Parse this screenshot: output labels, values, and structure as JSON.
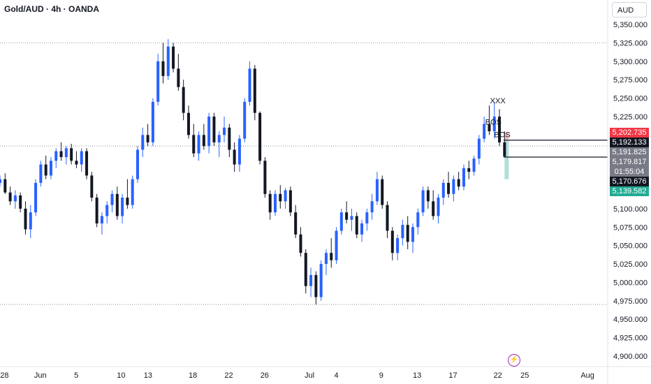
{
  "header": {
    "symbol_title": "Gold/AUD · 4h · OANDA"
  },
  "currency_button": "AUD",
  "colors": {
    "up": "#2962ff",
    "down": "#131722",
    "grid": "#9598a1",
    "red_badge": "#f23645",
    "teal_badge": "#22ab94",
    "gray_badge": "#787b86",
    "black_badge": "#131722",
    "tp_zone": "#b2dfdb",
    "sl_zone": "#f7c5c5"
  },
  "annotations": [
    {
      "text": "XXX",
      "x": "2025-07-22T00:00",
      "y": 5243
    },
    {
      "text": "BOS",
      "x": "2025-07-21T12:00",
      "y": 5214
    },
    {
      "text": "BOS",
      "x": "2025-07-22T12:00",
      "y": 5197
    }
  ],
  "price_labels": [
    {
      "name": "red-badge",
      "text": "5,202.735",
      "value": 5202.735,
      "color": "#f23645"
    },
    {
      "name": "black-badge-top",
      "text": "5,192.133",
      "value": 5192.133,
      "color": "#131722"
    },
    {
      "name": "gray-badge-1",
      "text": "5,191.825",
      "value": 5191.825,
      "color": "#787b86"
    },
    {
      "name": "gray-badge-2",
      "text": "5,179.817",
      "value": 5179.817,
      "color": "#787b86"
    },
    {
      "name": "countdown-badge",
      "text": "01:55:04",
      "value": 5168.0,
      "color": "#787b86"
    },
    {
      "name": "black-badge-bottom",
      "text": "5,170.676",
      "value": 5170.676,
      "color": "#131722"
    },
    {
      "name": "teal-badge",
      "text": "5,139.582",
      "value": 5139.582,
      "color": "#22ab94"
    }
  ],
  "chart_data": {
    "type": "candlestick",
    "ylim": [
      4890,
      5370
    ],
    "xlim": [
      "2025-05-27T12:00",
      "2025-08-03T06:00"
    ],
    "y_ticks": [
      "5,350.000",
      "5,325.000",
      "5,300.000",
      "5,275.000",
      "5,250.000",
      "5,225.000",
      "5,200.000",
      "5,175.000",
      "5,150.000",
      "5,125.000",
      "5,100.000",
      "5,075.000",
      "5,050.000",
      "5,025.000",
      "5,000.000",
      "4,975.000",
      "4,950.000",
      "4,925.000",
      "4,900.000"
    ],
    "y_tick_values": [
      5350,
      5325,
      5300,
      5275,
      5250,
      5225,
      5200,
      5175,
      5150,
      5125,
      5100,
      5075,
      5050,
      5025,
      5000,
      4975,
      4950,
      4925,
      4900
    ],
    "x_ticks": [
      {
        "label": "28",
        "date": "2025-05-28"
      },
      {
        "label": "Jun",
        "date": "2025-06-01"
      },
      {
        "label": "5",
        "date": "2025-06-05"
      },
      {
        "label": "10",
        "date": "2025-06-10"
      },
      {
        "label": "13",
        "date": "2025-06-13"
      },
      {
        "label": "18",
        "date": "2025-06-18"
      },
      {
        "label": "22",
        "date": "2025-06-22"
      },
      {
        "label": "26",
        "date": "2025-06-26"
      },
      {
        "label": "Jul",
        "date": "2025-07-01"
      },
      {
        "label": "4",
        "date": "2025-07-04"
      },
      {
        "label": "9",
        "date": "2025-07-09"
      },
      {
        "label": "13",
        "date": "2025-07-13"
      },
      {
        "label": "17",
        "date": "2025-07-17"
      },
      {
        "label": "22",
        "date": "2025-07-22"
      },
      {
        "label": "25",
        "date": "2025-07-25"
      },
      {
        "label": "Aug",
        "date": "2025-08-01"
      }
    ],
    "dotted_levels": [
      5325,
      5185,
      4970
    ],
    "horizontal_rays": [
      5193,
      5170
    ],
    "trade_box": {
      "entry": 5192,
      "target": 5140,
      "stop": 5203
    },
    "candles": [
      {
        "o": 5135,
        "h": 5145,
        "l": 5130,
        "c": 5140
      },
      {
        "o": 5140,
        "h": 5148,
        "l": 5120,
        "c": 5122
      },
      {
        "o": 5122,
        "h": 5130,
        "l": 5105,
        "c": 5110
      },
      {
        "o": 5110,
        "h": 5125,
        "l": 5100,
        "c": 5118
      },
      {
        "o": 5118,
        "h": 5122,
        "l": 5095,
        "c": 5100
      },
      {
        "o": 5100,
        "h": 5110,
        "l": 5065,
        "c": 5072
      },
      {
        "o": 5072,
        "h": 5105,
        "l": 5060,
        "c": 5095
      },
      {
        "o": 5095,
        "h": 5140,
        "l": 5090,
        "c": 5135
      },
      {
        "o": 5135,
        "h": 5165,
        "l": 5130,
        "c": 5160
      },
      {
        "o": 5160,
        "h": 5172,
        "l": 5140,
        "c": 5145
      },
      {
        "o": 5145,
        "h": 5170,
        "l": 5140,
        "c": 5165
      },
      {
        "o": 5165,
        "h": 5182,
        "l": 5155,
        "c": 5178
      },
      {
        "o": 5178,
        "h": 5190,
        "l": 5165,
        "c": 5170
      },
      {
        "o": 5170,
        "h": 5185,
        "l": 5160,
        "c": 5182
      },
      {
        "o": 5182,
        "h": 5188,
        "l": 5160,
        "c": 5165
      },
      {
        "o": 5165,
        "h": 5178,
        "l": 5155,
        "c": 5160
      },
      {
        "o": 5160,
        "h": 5182,
        "l": 5150,
        "c": 5178
      },
      {
        "o": 5178,
        "h": 5182,
        "l": 5140,
        "c": 5145
      },
      {
        "o": 5145,
        "h": 5150,
        "l": 5110,
        "c": 5115
      },
      {
        "o": 5115,
        "h": 5120,
        "l": 5075,
        "c": 5080
      },
      {
        "o": 5080,
        "h": 5095,
        "l": 5065,
        "c": 5090
      },
      {
        "o": 5090,
        "h": 5110,
        "l": 5080,
        "c": 5105
      },
      {
        "o": 5105,
        "h": 5125,
        "l": 5095,
        "c": 5120
      },
      {
        "o": 5120,
        "h": 5130,
        "l": 5085,
        "c": 5090
      },
      {
        "o": 5090,
        "h": 5120,
        "l": 5080,
        "c": 5115
      },
      {
        "o": 5115,
        "h": 5140,
        "l": 5100,
        "c": 5105
      },
      {
        "o": 5105,
        "h": 5145,
        "l": 5100,
        "c": 5140
      },
      {
        "o": 5140,
        "h": 5185,
        "l": 5135,
        "c": 5180
      },
      {
        "o": 5180,
        "h": 5210,
        "l": 5170,
        "c": 5200
      },
      {
        "o": 5200,
        "h": 5215,
        "l": 5185,
        "c": 5190
      },
      {
        "o": 5190,
        "h": 5250,
        "l": 5185,
        "c": 5245
      },
      {
        "o": 5245,
        "h": 5310,
        "l": 5240,
        "c": 5300
      },
      {
        "o": 5300,
        "h": 5325,
        "l": 5270,
        "c": 5280
      },
      {
        "o": 5280,
        "h": 5330,
        "l": 5275,
        "c": 5320
      },
      {
        "o": 5320,
        "h": 5325,
        "l": 5285,
        "c": 5290
      },
      {
        "o": 5290,
        "h": 5310,
        "l": 5260,
        "c": 5265
      },
      {
        "o": 5265,
        "h": 5275,
        "l": 5220,
        "c": 5230
      },
      {
        "o": 5230,
        "h": 5240,
        "l": 5195,
        "c": 5200
      },
      {
        "o": 5200,
        "h": 5215,
        "l": 5170,
        "c": 5175
      },
      {
        "o": 5175,
        "h": 5205,
        "l": 5165,
        "c": 5200
      },
      {
        "o": 5200,
        "h": 5215,
        "l": 5180,
        "c": 5185
      },
      {
        "o": 5185,
        "h": 5230,
        "l": 5175,
        "c": 5225
      },
      {
        "o": 5225,
        "h": 5230,
        "l": 5185,
        "c": 5190
      },
      {
        "o": 5190,
        "h": 5205,
        "l": 5170,
        "c": 5200
      },
      {
        "o": 5200,
        "h": 5225,
        "l": 5190,
        "c": 5210
      },
      {
        "o": 5210,
        "h": 5215,
        "l": 5170,
        "c": 5180
      },
      {
        "o": 5180,
        "h": 5190,
        "l": 5150,
        "c": 5160
      },
      {
        "o": 5160,
        "h": 5200,
        "l": 5150,
        "c": 5195
      },
      {
        "o": 5195,
        "h": 5250,
        "l": 5190,
        "c": 5245
      },
      {
        "o": 5245,
        "h": 5300,
        "l": 5240,
        "c": 5290
      },
      {
        "o": 5290,
        "h": 5295,
        "l": 5220,
        "c": 5230
      },
      {
        "o": 5230,
        "h": 5232,
        "l": 5160,
        "c": 5165
      },
      {
        "o": 5165,
        "h": 5170,
        "l": 5115,
        "c": 5120
      },
      {
        "o": 5120,
        "h": 5125,
        "l": 5085,
        "c": 5095
      },
      {
        "o": 5095,
        "h": 5125,
        "l": 5090,
        "c": 5120
      },
      {
        "o": 5120,
        "h": 5132,
        "l": 5100,
        "c": 5110
      },
      {
        "o": 5110,
        "h": 5128,
        "l": 5100,
        "c": 5125
      },
      {
        "o": 5125,
        "h": 5130,
        "l": 5090,
        "c": 5095
      },
      {
        "o": 5095,
        "h": 5105,
        "l": 5060,
        "c": 5065
      },
      {
        "o": 5065,
        "h": 5075,
        "l": 5035,
        "c": 5040
      },
      {
        "o": 5040,
        "h": 5045,
        "l": 4985,
        "c": 4995
      },
      {
        "o": 4995,
        "h": 5020,
        "l": 4980,
        "c": 5010
      },
      {
        "o": 5010,
        "h": 5015,
        "l": 4970,
        "c": 4980
      },
      {
        "o": 4980,
        "h": 5030,
        "l": 4975,
        "c": 5025
      },
      {
        "o": 5025,
        "h": 5045,
        "l": 5010,
        "c": 5040
      },
      {
        "o": 5040,
        "h": 5060,
        "l": 5020,
        "c": 5030
      },
      {
        "o": 5030,
        "h": 5075,
        "l": 5025,
        "c": 5070
      },
      {
        "o": 5070,
        "h": 5100,
        "l": 5065,
        "c": 5095
      },
      {
        "o": 5095,
        "h": 5110,
        "l": 5080,
        "c": 5085
      },
      {
        "o": 5085,
        "h": 5100,
        "l": 5070,
        "c": 5090
      },
      {
        "o": 5090,
        "h": 5095,
        "l": 5060,
        "c": 5065
      },
      {
        "o": 5065,
        "h": 5085,
        "l": 5055,
        "c": 5080
      },
      {
        "o": 5080,
        "h": 5100,
        "l": 5070,
        "c": 5095
      },
      {
        "o": 5095,
        "h": 5120,
        "l": 5085,
        "c": 5110
      },
      {
        "o": 5110,
        "h": 5150,
        "l": 5105,
        "c": 5140
      },
      {
        "o": 5140,
        "h": 5145,
        "l": 5100,
        "c": 5105
      },
      {
        "o": 5105,
        "h": 5110,
        "l": 5060,
        "c": 5070
      },
      {
        "o": 5070,
        "h": 5075,
        "l": 5030,
        "c": 5040
      },
      {
        "o": 5040,
        "h": 5065,
        "l": 5030,
        "c": 5060
      },
      {
        "o": 5060,
        "h": 5085,
        "l": 5050,
        "c": 5078
      },
      {
        "o": 5078,
        "h": 5090,
        "l": 5045,
        "c": 5055
      },
      {
        "o": 5055,
        "h": 5080,
        "l": 5040,
        "c": 5075
      },
      {
        "o": 5075,
        "h": 5100,
        "l": 5065,
        "c": 5095
      },
      {
        "o": 5095,
        "h": 5130,
        "l": 5090,
        "c": 5125
      },
      {
        "o": 5125,
        "h": 5130,
        "l": 5100,
        "c": 5110
      },
      {
        "o": 5110,
        "h": 5125,
        "l": 5085,
        "c": 5090
      },
      {
        "o": 5090,
        "h": 5120,
        "l": 5080,
        "c": 5115
      },
      {
        "o": 5115,
        "h": 5140,
        "l": 5105,
        "c": 5135
      },
      {
        "o": 5135,
        "h": 5150,
        "l": 5115,
        "c": 5120
      },
      {
        "o": 5120,
        "h": 5145,
        "l": 5110,
        "c": 5140
      },
      {
        "o": 5140,
        "h": 5150,
        "l": 5125,
        "c": 5130
      },
      {
        "o": 5130,
        "h": 5160,
        "l": 5125,
        "c": 5155
      },
      {
        "o": 5155,
        "h": 5165,
        "l": 5140,
        "c": 5150
      },
      {
        "o": 5150,
        "h": 5172,
        "l": 5145,
        "c": 5168
      },
      {
        "o": 5168,
        "h": 5200,
        "l": 5160,
        "c": 5195
      },
      {
        "o": 5195,
        "h": 5225,
        "l": 5190,
        "c": 5215
      },
      {
        "o": 5215,
        "h": 5240,
        "l": 5200,
        "c": 5205
      },
      {
        "o": 5205,
        "h": 5245,
        "l": 5195,
        "c": 5225
      },
      {
        "o": 5225,
        "h": 5235,
        "l": 5185,
        "c": 5190
      },
      {
        "o": 5190,
        "h": 5205,
        "l": 5170,
        "c": 5171
      }
    ]
  }
}
